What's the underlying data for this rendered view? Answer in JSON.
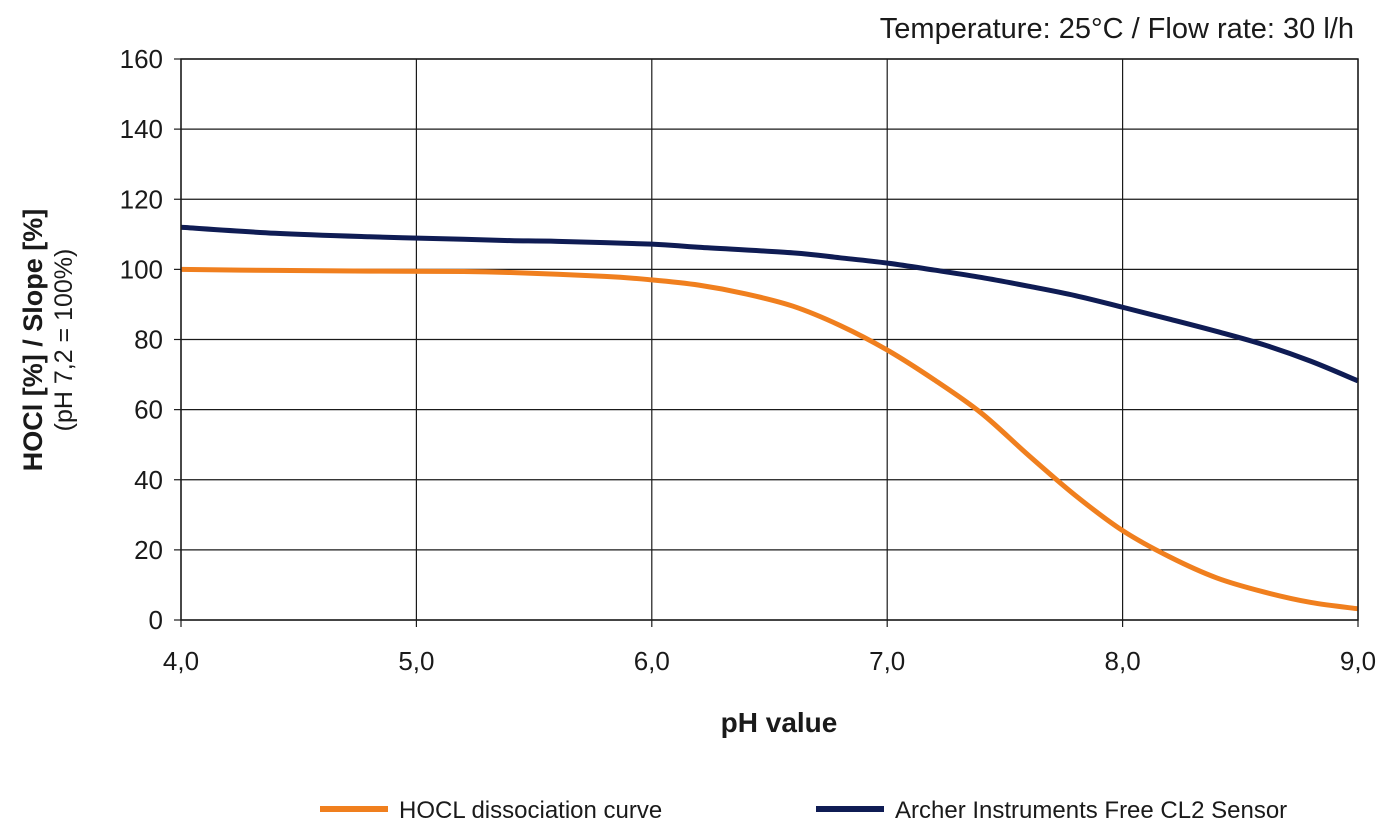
{
  "chart_data": {
    "type": "line",
    "subtitle": "Temperature: 25°C / Flow rate: 30 l/h",
    "xlabel": "pH value",
    "ylabel": "HOCl [%] / Slope [%]",
    "ylabel_sub": "(pH 7,2 = 100%)",
    "xlim": [
      4.0,
      9.0
    ],
    "ylim": [
      0,
      160
    ],
    "x_ticks": [
      4.0,
      5.0,
      6.0,
      7.0,
      8.0,
      9.0
    ],
    "x_tick_labels": [
      "4,0",
      "5,0",
      "6,0",
      "7,0",
      "8,0",
      "9,0"
    ],
    "y_ticks": [
      0,
      20,
      40,
      60,
      80,
      100,
      120,
      140,
      160
    ],
    "y_tick_labels": [
      "0",
      "20",
      "40",
      "60",
      "80",
      "100",
      "120",
      "140",
      "160"
    ],
    "grid": true,
    "legend_position": "bottom",
    "series": [
      {
        "name": "HOCL dissociation curve",
        "color": "#f07f1e",
        "x": [
          4.0,
          4.4,
          4.8,
          5.2,
          5.4,
          5.8,
          6.0,
          6.2,
          6.4,
          6.6,
          6.8,
          7.0,
          7.2,
          7.4,
          7.6,
          7.8,
          8.0,
          8.2,
          8.4,
          8.6,
          8.8,
          9.0
        ],
        "y": [
          100,
          99.7,
          99.5,
          99.4,
          99.1,
          98,
          97,
          95.5,
          93,
          89.5,
          84,
          77,
          68.5,
          59,
          47,
          35.5,
          25.5,
          18,
          12,
          8,
          5,
          3.2
        ]
      },
      {
        "name": "Archer Instruments Free CL2 Sensor",
        "color": "#0f1c54",
        "x": [
          4.0,
          4.4,
          4.8,
          5.2,
          5.4,
          5.6,
          6.0,
          6.2,
          6.6,
          6.8,
          7.0,
          7.2,
          7.4,
          7.6,
          7.8,
          8.0,
          8.2,
          8.4,
          8.6,
          8.8,
          9.0
        ],
        "y": [
          112,
          110.3,
          109.3,
          108.6,
          108.2,
          108,
          107.2,
          106.3,
          104.7,
          103.3,
          101.8,
          99.8,
          97.7,
          95.2,
          92.5,
          89.2,
          85.8,
          82.3,
          78.5,
          73.8,
          68.2
        ]
      }
    ]
  }
}
